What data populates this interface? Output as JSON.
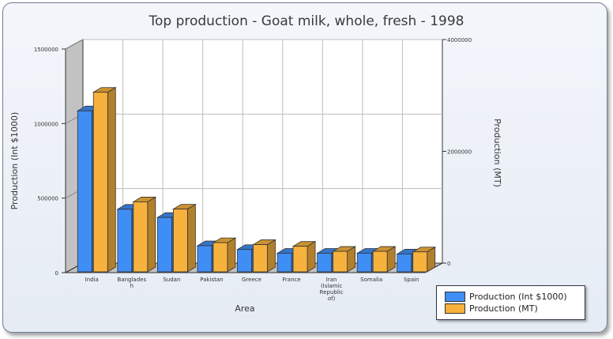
{
  "chart_data": {
    "type": "bar",
    "title": "Top production - Goat milk, whole, fresh - 1998",
    "xlabel": "Area",
    "ylabel_left": "Production (Int $1000)",
    "ylabel_right": "Production (MT)",
    "categories": [
      "India",
      "Bangladesh",
      "Sudan",
      "Pakistan",
      "Greece",
      "France",
      "Iran (Islamic Republic of)",
      "Somalia",
      "Spain"
    ],
    "category_display": [
      [
        "India"
      ],
      [
        "Banglades",
        "h"
      ],
      [
        "Sudan"
      ],
      [
        "Pakistan"
      ],
      [
        "Greece"
      ],
      [
        "France"
      ],
      [
        "Iran",
        "(Islamic",
        "Republic",
        "of)"
      ],
      [
        "Somalia"
      ],
      [
        "Spain"
      ]
    ],
    "left_ticks": [
      "0",
      "500000",
      "1000000",
      "1500000"
    ],
    "right_ticks": [
      "0",
      "2000000",
      "4000000"
    ],
    "ylim_left": [
      0,
      1500000
    ],
    "ylim_right": [
      0,
      4000000
    ],
    "series": [
      {
        "name": "Production (Int $1000)",
        "axis": "left",
        "color": "#3f8ef5",
        "values": [
          1085000,
          425000,
          370000,
          180000,
          155000,
          130000,
          130000,
          130000,
          125000
        ]
      },
      {
        "name": "Production (MT)",
        "axis": "right",
        "color": "#f7b23d",
        "values": [
          3240000,
          1280000,
          1150000,
          550000,
          515000,
          485000,
          395000,
          395000,
          385000
        ]
      }
    ],
    "grid": true,
    "legend_position": "bottom-right"
  }
}
